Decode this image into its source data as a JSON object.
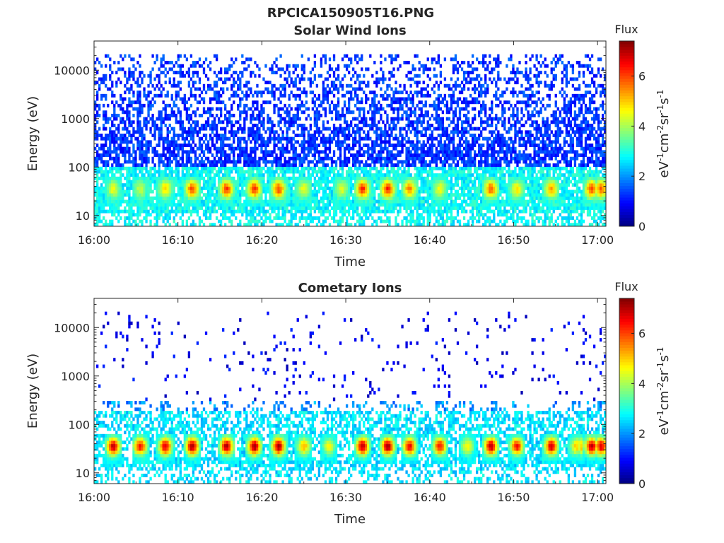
{
  "figure_title": "RPCICA150905T16.PNG",
  "chart_data": [
    {
      "type": "heatmap",
      "title": "Solar Wind Ions",
      "xlabel": "Time",
      "ylabel": "Energy (eV)",
      "x_ticks": [
        "16:00",
        "16:10",
        "16:20",
        "16:30",
        "16:40",
        "16:50",
        "17:00"
      ],
      "x_range": [
        "16:00",
        "17:01"
      ],
      "y_ticks": [
        10,
        100,
        1000,
        10000
      ],
      "y_tick_labels": [
        "10",
        "100",
        "1000",
        "10000"
      ],
      "y_range": [
        6,
        40000
      ],
      "y_scale": "log",
      "colorbar": {
        "label": "eV-1cm-2sr-1s-1",
        "title": "Flux",
        "range": [
          0,
          7.4
        ],
        "ticks": [
          0,
          2,
          4,
          6
        ],
        "tick_labels": [
          "0",
          "2",
          "4",
          "6"
        ],
        "colormap": "jet"
      },
      "low_energy_band": {
        "energy_range_eV": [
          6,
          100
        ],
        "typical_value": 2.8
      },
      "high_energy_band": {
        "energy_range_eV": [
          100,
          20000
        ],
        "typical_value": 1.3
      },
      "bursts": [
        {
          "minute": 2.3,
          "value": 4.5
        },
        {
          "minute": 5.5,
          "value": 4.2
        },
        {
          "minute": 8.5,
          "value": 5.0
        },
        {
          "minute": 11.7,
          "value": 6.0
        },
        {
          "minute": 15.8,
          "value": 6.1
        },
        {
          "minute": 19.1,
          "value": 6.2
        },
        {
          "minute": 22.0,
          "value": 6.0
        },
        {
          "minute": 25.0,
          "value": 4.6
        },
        {
          "minute": 29.5,
          "value": 4.4
        },
        {
          "minute": 32.0,
          "value": 6.3
        },
        {
          "minute": 35.0,
          "value": 6.3
        },
        {
          "minute": 37.6,
          "value": 5.6
        },
        {
          "minute": 41.2,
          "value": 4.6
        },
        {
          "minute": 47.3,
          "value": 5.9
        },
        {
          "minute": 50.4,
          "value": 4.8
        },
        {
          "minute": 54.5,
          "value": 5.4
        },
        {
          "minute": 59.3,
          "value": 6.0
        },
        {
          "minute": 60.5,
          "value": 5.6
        }
      ]
    },
    {
      "type": "heatmap",
      "title": "Cometary Ions",
      "xlabel": "Time",
      "ylabel": "Energy (eV)",
      "x_ticks": [
        "16:00",
        "16:10",
        "16:20",
        "16:30",
        "16:40",
        "16:50",
        "17:00"
      ],
      "x_range": [
        "16:00",
        "17:01"
      ],
      "y_ticks": [
        10,
        100,
        1000,
        10000
      ],
      "y_tick_labels": [
        "10",
        "100",
        "1000",
        "10000"
      ],
      "y_range": [
        6,
        40000
      ],
      "y_scale": "log",
      "colorbar": {
        "label": "eV-1cm-2sr-1s-1",
        "title": "Flux",
        "range": [
          0,
          7.4
        ],
        "ticks": [
          0,
          2,
          4,
          6
        ],
        "tick_labels": [
          "0",
          "2",
          "4",
          "6"
        ],
        "colormap": "jet"
      },
      "low_energy_band": {
        "energy_range_eV": [
          6,
          200
        ],
        "typical_value": 2.6
      },
      "high_energy_band": {
        "energy_range_eV": [
          300,
          20000
        ],
        "typical_value": 0.8
      },
      "bursts": [
        {
          "minute": 2.3,
          "value": 7.0
        },
        {
          "minute": 5.5,
          "value": 6.4
        },
        {
          "minute": 8.5,
          "value": 6.8
        },
        {
          "minute": 11.7,
          "value": 7.2
        },
        {
          "minute": 15.8,
          "value": 7.0
        },
        {
          "minute": 19.1,
          "value": 7.2
        },
        {
          "minute": 22.0,
          "value": 7.1
        },
        {
          "minute": 25.0,
          "value": 5.2
        },
        {
          "minute": 28.0,
          "value": 4.6
        },
        {
          "minute": 32.0,
          "value": 7.0
        },
        {
          "minute": 35.0,
          "value": 7.2
        },
        {
          "minute": 37.6,
          "value": 6.6
        },
        {
          "minute": 41.2,
          "value": 6.4
        },
        {
          "minute": 44.5,
          "value": 4.6
        },
        {
          "minute": 47.3,
          "value": 7.0
        },
        {
          "minute": 50.4,
          "value": 6.4
        },
        {
          "minute": 54.5,
          "value": 6.9
        },
        {
          "minute": 57.5,
          "value": 5.0
        },
        {
          "minute": 59.3,
          "value": 7.0
        },
        {
          "minute": 60.5,
          "value": 6.5
        }
      ]
    }
  ]
}
